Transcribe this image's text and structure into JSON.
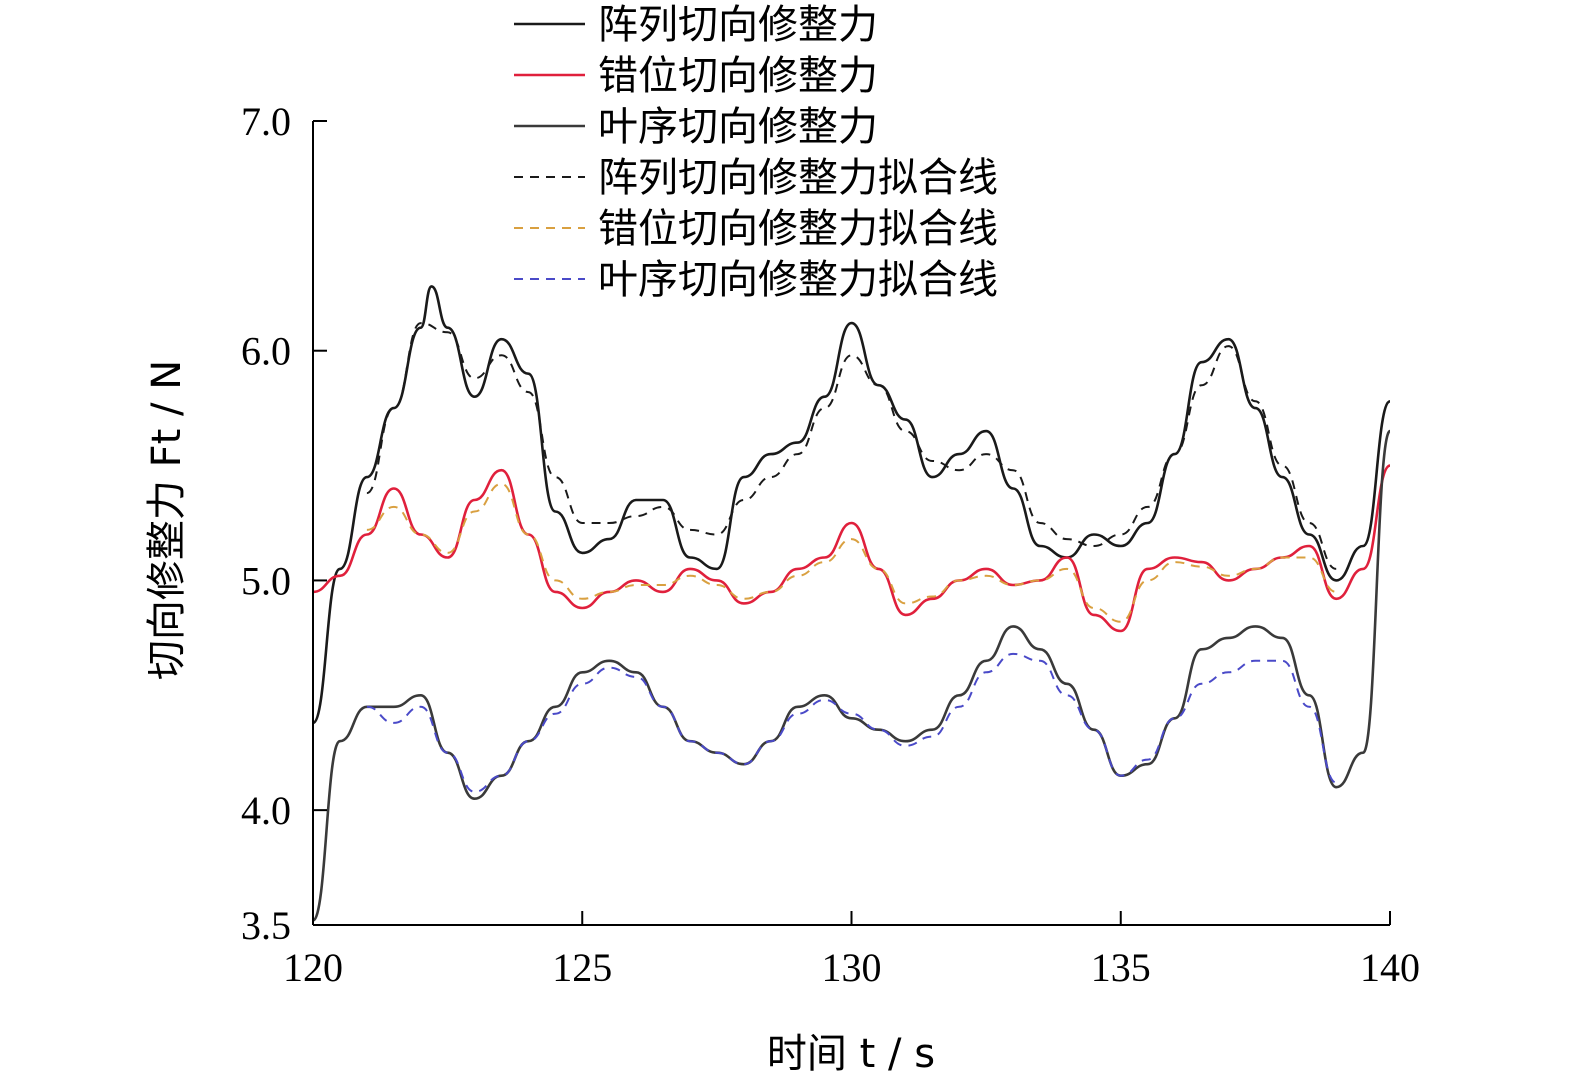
{
  "chart_data": {
    "type": "line",
    "xlabel": "时间 t / s",
    "ylabel": "切向修整力 Ft / N",
    "xlim": [
      120,
      140
    ],
    "ylim": [
      3.5,
      7.0
    ],
    "xticks": [
      120,
      125,
      130,
      135,
      140
    ],
    "yticks": [
      3.5,
      4.0,
      5.0,
      6.0,
      7.0
    ],
    "xtick_labels": [
      "120",
      "125",
      "130",
      "135",
      "140"
    ],
    "ytick_labels": [
      "3.5",
      "4.0",
      "5.0",
      "6.0",
      "7.0"
    ],
    "legend_placement": "top",
    "series": [
      {
        "name": "阵列切向修整力",
        "style": "solid",
        "color": "#1a1a1a",
        "x": [
          120,
          120.5,
          121,
          121.5,
          122,
          122.2,
          122.5,
          123,
          123.5,
          124,
          124.5,
          125,
          125.5,
          126,
          126.5,
          127,
          127.5,
          128,
          128.5,
          129,
          129.5,
          130,
          130.5,
          131,
          131.5,
          132,
          132.5,
          133,
          133.5,
          134,
          134.5,
          135,
          135.5,
          136,
          136.5,
          137,
          137.5,
          138,
          138.5,
          139,
          139.5,
          140
        ],
        "y": [
          4.38,
          5.05,
          5.45,
          5.75,
          6.1,
          6.28,
          6.1,
          5.8,
          6.05,
          5.9,
          5.3,
          5.12,
          5.18,
          5.35,
          5.35,
          5.1,
          5.05,
          5.45,
          5.55,
          5.6,
          5.8,
          6.12,
          5.85,
          5.7,
          5.45,
          5.55,
          5.65,
          5.4,
          5.15,
          5.1,
          5.2,
          5.15,
          5.25,
          5.55,
          5.95,
          6.05,
          5.75,
          5.45,
          5.2,
          5.0,
          5.15,
          5.78
        ]
      },
      {
        "name": "错位切向修整力",
        "style": "solid",
        "color": "#e0203c",
        "x": [
          120,
          120.5,
          121,
          121.5,
          122,
          122.5,
          123,
          123.5,
          124,
          124.5,
          125,
          125.5,
          126,
          126.5,
          127,
          127.5,
          128,
          128.5,
          129,
          129.5,
          130,
          130.5,
          131,
          131.5,
          132,
          132.5,
          133,
          133.5,
          134,
          134.5,
          135,
          135.5,
          136,
          136.5,
          137,
          137.5,
          138,
          138.5,
          139,
          139.5,
          140
        ],
        "y": [
          4.95,
          5.02,
          5.2,
          5.4,
          5.2,
          5.1,
          5.35,
          5.48,
          5.2,
          4.95,
          4.88,
          4.95,
          5.0,
          4.95,
          5.05,
          5.0,
          4.9,
          4.95,
          5.05,
          5.1,
          5.25,
          5.05,
          4.85,
          4.92,
          5.0,
          5.05,
          4.98,
          5.0,
          5.1,
          4.85,
          4.78,
          5.05,
          5.1,
          5.08,
          5.0,
          5.05,
          5.1,
          5.15,
          4.92,
          5.05,
          5.5
        ]
      },
      {
        "name": "叶序切向修整力",
        "style": "solid",
        "color": "#3a3a3a",
        "x": [
          120,
          120.5,
          121,
          121.5,
          122,
          122.5,
          123,
          123.5,
          124,
          124.5,
          125,
          125.5,
          126,
          126.5,
          127,
          127.5,
          128,
          128.5,
          129,
          129.5,
          130,
          130.5,
          131,
          131.5,
          132,
          132.5,
          133,
          133.5,
          134,
          134.5,
          135,
          135.5,
          136,
          136.5,
          137,
          137.5,
          138,
          138.5,
          139,
          139.5,
          140
        ],
        "y": [
          3.52,
          4.3,
          4.45,
          4.45,
          4.5,
          4.25,
          4.05,
          4.15,
          4.3,
          4.45,
          4.6,
          4.65,
          4.6,
          4.45,
          4.3,
          4.25,
          4.2,
          4.3,
          4.45,
          4.5,
          4.4,
          4.35,
          4.3,
          4.35,
          4.5,
          4.65,
          4.8,
          4.7,
          4.55,
          4.35,
          4.15,
          4.2,
          4.4,
          4.7,
          4.75,
          4.8,
          4.75,
          4.5,
          4.1,
          4.25,
          5.65
        ]
      },
      {
        "name": "阵列切向修整力拟合线",
        "style": "dashed",
        "color": "#1a1a1a",
        "x": [
          121,
          121.5,
          122,
          122.5,
          123,
          123.5,
          124,
          124.5,
          125,
          125.5,
          126,
          126.5,
          127,
          127.5,
          128,
          128.5,
          129,
          129.5,
          130,
          130.5,
          131,
          131.5,
          132,
          132.5,
          133,
          133.5,
          134,
          134.5,
          135,
          135.5,
          136,
          136.5,
          137,
          137.5,
          138,
          138.5,
          139
        ],
        "y": [
          5.38,
          5.75,
          6.12,
          6.08,
          5.88,
          5.98,
          5.82,
          5.45,
          5.25,
          5.25,
          5.28,
          5.32,
          5.22,
          5.2,
          5.35,
          5.45,
          5.55,
          5.75,
          5.98,
          5.85,
          5.65,
          5.52,
          5.48,
          5.55,
          5.48,
          5.25,
          5.18,
          5.15,
          5.2,
          5.32,
          5.55,
          5.85,
          6.02,
          5.78,
          5.5,
          5.25,
          5.05
        ]
      },
      {
        "name": "错位切向修整力拟合线",
        "style": "dashed",
        "color": "#d9a040",
        "x": [
          121,
          121.5,
          122,
          122.5,
          123,
          123.5,
          124,
          124.5,
          125,
          125.5,
          126,
          126.5,
          127,
          127.5,
          128,
          128.5,
          129,
          129.5,
          130,
          130.5,
          131,
          131.5,
          132,
          132.5,
          133,
          133.5,
          134,
          134.5,
          135,
          135.5,
          136,
          136.5,
          137,
          137.5,
          138,
          138.5,
          139
        ],
        "y": [
          5.22,
          5.32,
          5.2,
          5.12,
          5.3,
          5.42,
          5.2,
          5.0,
          4.92,
          4.95,
          4.98,
          4.98,
          5.02,
          4.98,
          4.92,
          4.95,
          5.02,
          5.08,
          5.18,
          5.05,
          4.9,
          4.93,
          5.0,
          5.02,
          4.98,
          5.0,
          5.05,
          4.88,
          4.82,
          5.0,
          5.08,
          5.06,
          5.02,
          5.05,
          5.1,
          5.1,
          4.95
        ]
      },
      {
        "name": "叶序切向修整力拟合线",
        "style": "dashed",
        "color": "#4a4ac8",
        "x": [
          121,
          121.5,
          122,
          122.5,
          123,
          123.5,
          124,
          124.5,
          125,
          125.5,
          126,
          126.5,
          127,
          127.5,
          128,
          128.5,
          129,
          129.5,
          130,
          130.5,
          131,
          131.5,
          132,
          132.5,
          133,
          133.5,
          134,
          134.5,
          135,
          135.5,
          136,
          136.5,
          137,
          137.5,
          138,
          138.5,
          139
        ],
        "y": [
          4.45,
          4.38,
          4.45,
          4.25,
          4.08,
          4.15,
          4.3,
          4.42,
          4.55,
          4.62,
          4.58,
          4.45,
          4.3,
          4.25,
          4.2,
          4.3,
          4.42,
          4.48,
          4.42,
          4.35,
          4.28,
          4.32,
          4.45,
          4.6,
          4.68,
          4.65,
          4.5,
          4.35,
          4.15,
          4.22,
          4.4,
          4.55,
          4.6,
          4.65,
          4.65,
          4.45,
          4.12
        ]
      }
    ]
  }
}
